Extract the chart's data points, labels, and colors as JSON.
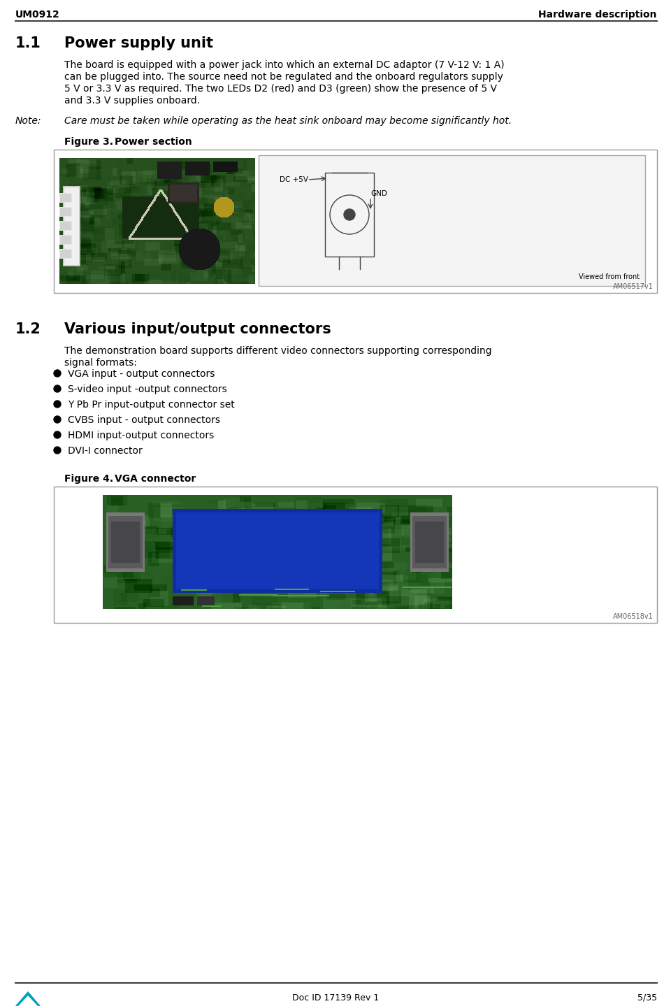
{
  "bg_color": "#ffffff",
  "header_left": "UM0912",
  "header_right": "Hardware description",
  "section1_num": "1.1",
  "section1_title": "Power supply unit",
  "body1_line1": "The board is equipped with a power jack into which an external DC adaptor (7 V-12 V: 1 A)",
  "body1_line2": "can be plugged into. The source need not be regulated and the onboard regulators supply",
  "body1_line3": "5 V or 3.3 V as required. The two LEDs D2 (red) and D3 (green) show the presence of 5 V",
  "body1_line4": "and 3.3 V supplies onboard.",
  "note_label": "Note:",
  "note_text": "Care must be taken while operating as the heat sink onboard may become significantly hot.",
  "fig3_label": "Figure 3.",
  "fig3_title": "Power section",
  "fig3_ref": "AM06517v1",
  "section2_num": "1.2",
  "section2_title": "Various input/output connectors",
  "body2_line1": "The demonstration board supports different video connectors supporting corresponding",
  "body2_line2": "signal formats:",
  "bullet_items": [
    "VGA input - output connectors",
    "S-video input -output connectors",
    "Y Pb Pr input-output connector set",
    "CVBS input - output connectors",
    "HDMI input-output connectors",
    "DVI-I connector"
  ],
  "fig4_label": "Figure 4.",
  "fig4_title": "VGA connector",
  "fig4_ref": "AM06518v1",
  "footer_center": "Doc ID 17139 Rev 1",
  "footer_right": "5/35",
  "text_color": "#000000",
  "body_fs": 10,
  "title_fs": 15,
  "secnum_fs": 15,
  "note_fs": 10,
  "figlabel_fs": 10,
  "footer_fs": 9,
  "header_fs": 10
}
